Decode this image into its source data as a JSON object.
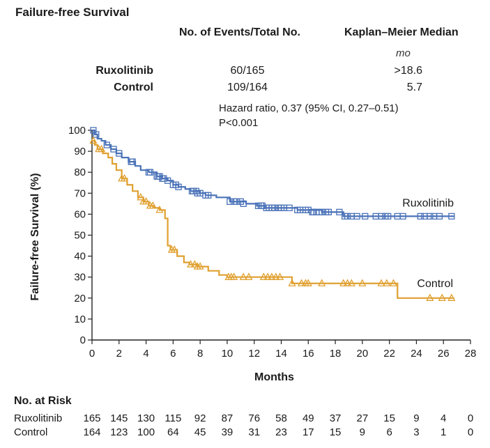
{
  "header": {
    "title": "Failure-free Survival",
    "col_events": "No. of Events/Total No.",
    "col_km": "Kaplan–Meier Median",
    "km_unit": "mo"
  },
  "groups": [
    {
      "name": "Ruxolitinib",
      "events": "60/165",
      "median": ">18.6"
    },
    {
      "name": "Control",
      "events": "109/164",
      "median": "5.7"
    }
  ],
  "stats": {
    "hazard_ratio": "Hazard ratio, 0.37 (95% CI, 0.27–0.51)",
    "p_value": "P<0.001"
  },
  "colors": {
    "ruxolitinib": "#4a72b8",
    "control": "#e0a030",
    "axis": "#222222"
  },
  "chart_data": {
    "type": "line",
    "title": "Failure-free Survival",
    "xlabel": "Months",
    "ylabel": "Failure-free Survival (%)",
    "xlim": [
      0,
      28
    ],
    "ylim": [
      0,
      100
    ],
    "xticks": [
      "0",
      "2",
      "4",
      "6",
      "8",
      "10",
      "12",
      "14",
      "16",
      "18",
      "20",
      "22",
      "24",
      "26",
      "28"
    ],
    "yticks": [
      "0",
      "10",
      "20",
      "30",
      "40",
      "50",
      "60",
      "70",
      "80",
      "90",
      "100"
    ],
    "series": [
      {
        "name": "Ruxolitinib",
        "label": "Ruxolitinib",
        "marker": "square",
        "step_x": [
          0,
          0.2,
          0.4,
          0.7,
          1.0,
          1.4,
          1.8,
          2.2,
          2.7,
          3.2,
          3.6,
          4.2,
          4.8,
          5.2,
          5.6,
          6.0,
          6.4,
          6.9,
          7.3,
          8.0,
          8.4,
          9.2,
          10.2,
          11.4,
          12.2,
          12.8,
          15.2,
          17.0,
          18.6,
          22.0,
          24.0,
          26.8
        ],
        "step_y": [
          100,
          98,
          96,
          95,
          93,
          91,
          89,
          87,
          85,
          83,
          81,
          80,
          78,
          77,
          76,
          74,
          73,
          72,
          71,
          70,
          69,
          68,
          66,
          65,
          64,
          63,
          62,
          61,
          59,
          59,
          59,
          59
        ],
        "censor_x": [
          0.1,
          0.3,
          1.1,
          1.6,
          2.0,
          2.9,
          3.0,
          4.2,
          4.3,
          4.8,
          4.9,
          5.0,
          5.2,
          5.3,
          5.6,
          6.0,
          6.2,
          6.4,
          7.4,
          7.5,
          7.7,
          7.8,
          8.0,
          8.4,
          8.6,
          10.2,
          10.5,
          10.7,
          11.0,
          11.2,
          12.3,
          12.5,
          12.6,
          12.9,
          13.1,
          13.3,
          13.5,
          13.8,
          14.0,
          14.2,
          14.6,
          15.2,
          15.4,
          15.8,
          16.0,
          16.3,
          16.4,
          16.6,
          16.8,
          17.0,
          17.3,
          17.5,
          18.3,
          18.7,
          18.9,
          19.2,
          19.6,
          20.2,
          21.0,
          21.4,
          21.7,
          21.9,
          22.6,
          23.0,
          24.3,
          24.6,
          25.0,
          25.3,
          25.7,
          26.6
        ],
        "censor_y": [
          100,
          98,
          93,
          91,
          89,
          85,
          85,
          80,
          80,
          78,
          78,
          78,
          77,
          77,
          76,
          74,
          74,
          73,
          71,
          71,
          71,
          70,
          70,
          69,
          69,
          66,
          66,
          66,
          66,
          65,
          64,
          64,
          64,
          63,
          63,
          63,
          63,
          63,
          63,
          63,
          63,
          62,
          62,
          62,
          62,
          61,
          61,
          61,
          61,
          61,
          61,
          61,
          61,
          59,
          59,
          59,
          59,
          59,
          59,
          59,
          59,
          59,
          59,
          59,
          59,
          59,
          59,
          59,
          59,
          59
        ]
      },
      {
        "name": "Control",
        "label": "Control",
        "marker": "triangle",
        "step_x": [
          0,
          0.2,
          0.4,
          0.8,
          1.2,
          1.5,
          1.8,
          2.2,
          2.6,
          3.0,
          3.4,
          3.8,
          4.2,
          4.6,
          5.0,
          5.4,
          5.6,
          5.8,
          6.3,
          6.8,
          7.2,
          7.8,
          8.6,
          9.4,
          10.0,
          11.0,
          14.8,
          22.6,
          26.8
        ],
        "step_y": [
          95,
          93,
          91,
          89,
          87,
          84,
          81,
          77,
          74,
          71,
          68,
          66,
          64,
          63,
          62,
          58,
          45,
          43,
          40,
          37,
          36,
          35,
          33,
          31,
          30,
          30,
          27,
          20,
          20
        ],
        "censor_x": [
          0.1,
          0.5,
          0.7,
          2.2,
          2.4,
          3.6,
          3.8,
          4.0,
          4.3,
          4.5,
          5.0,
          5.9,
          6.1,
          7.3,
          7.6,
          7.8,
          8.0,
          10.1,
          10.3,
          10.5,
          11.2,
          11.6,
          12.7,
          13.0,
          13.3,
          13.6,
          13.9,
          14.8,
          15.5,
          15.8,
          16.0,
          17.0,
          18.6,
          18.9,
          19.2,
          20.0,
          21.4,
          21.8,
          22.3,
          25.0,
          25.9,
          26.6
        ],
        "censor_y": [
          95,
          91,
          91,
          77,
          77,
          68,
          66,
          66,
          64,
          64,
          62,
          43,
          43,
          36,
          36,
          35,
          35,
          30,
          30,
          30,
          30,
          30,
          30,
          30,
          30,
          30,
          30,
          27,
          27,
          27,
          27,
          27,
          27,
          27,
          27,
          27,
          27,
          27,
          27,
          20,
          20,
          20
        ]
      }
    ]
  },
  "risk_table": {
    "title": "No. at Risk",
    "months": [
      0,
      2,
      4,
      6,
      8,
      10,
      12,
      14,
      16,
      18,
      20,
      22,
      24,
      26,
      28
    ],
    "rows": [
      {
        "label": "Ruxolitinib",
        "values": [
          "165",
          "145",
          "130",
          "115",
          "92",
          "87",
          "76",
          "58",
          "49",
          "37",
          "27",
          "15",
          "9",
          "4",
          "0"
        ]
      },
      {
        "label": "Control",
        "values": [
          "164",
          "123",
          "100",
          "64",
          "45",
          "39",
          "31",
          "23",
          "17",
          "15",
          "9",
          "6",
          "3",
          "1",
          "0"
        ]
      }
    ]
  }
}
